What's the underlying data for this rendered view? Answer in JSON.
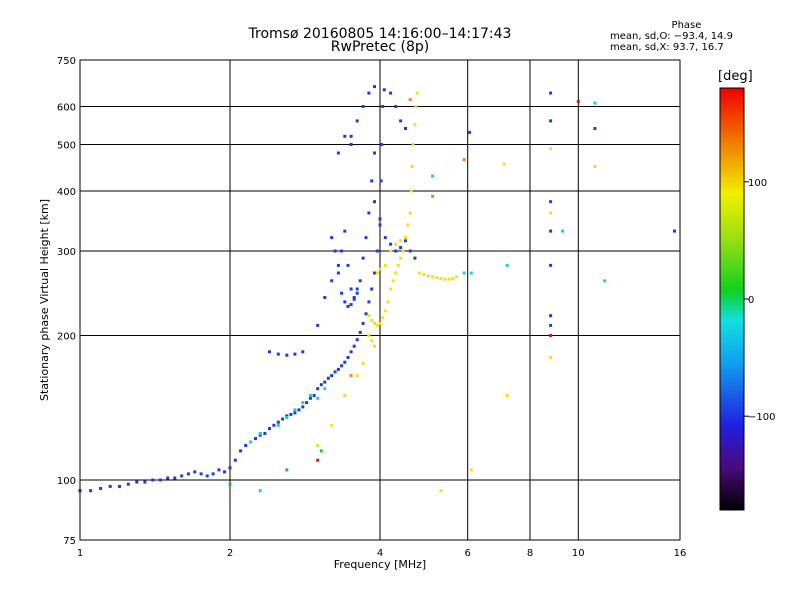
{
  "chart_data": {
    "type": "scatter",
    "title": "Tromsø 20160805 14:16:00–14:17:43",
    "subtitle": "RwPretec (8p)",
    "xlabel": "Frequency [MHz]",
    "ylabel": "Stationary phase Virtual Height [km]",
    "x_scale": "log",
    "y_scale": "log",
    "xlim": [
      1,
      16
    ],
    "ylim": [
      75,
      750
    ],
    "x_ticks": [
      1,
      2,
      4,
      6,
      8,
      10,
      16
    ],
    "x_tick_labels": [
      "1",
      "2",
      "4",
      "6",
      "8",
      "10",
      "16"
    ],
    "y_ticks": [
      75,
      100,
      200,
      300,
      400,
      500,
      600,
      750
    ],
    "y_tick_labels": [
      "75",
      "100",
      "200",
      "300",
      "400",
      "500",
      "600",
      "750"
    ],
    "grid": true,
    "phase_stats": {
      "title": "Phase",
      "o_line": "mean, sd,O: −93.4, 14.9",
      "x_line": "mean, sd,X:  93.7, 16.7"
    },
    "colorbar": {
      "label": "[deg]",
      "ticks": [
        100,
        0,
        -100
      ],
      "tick_labels": [
        "100",
        "0",
        "−100"
      ],
      "range": [
        -180,
        180
      ]
    },
    "series": [
      {
        "phase": -93.4,
        "color": "#1f3bd8",
        "points": [
          [
            1.0,
            95
          ],
          [
            1.05,
            95
          ],
          [
            1.1,
            96
          ],
          [
            1.15,
            97
          ],
          [
            1.2,
            97
          ],
          [
            1.25,
            98
          ],
          [
            1.3,
            99
          ],
          [
            1.35,
            99
          ],
          [
            1.4,
            100
          ],
          [
            1.45,
            100
          ],
          [
            1.5,
            101
          ],
          [
            1.55,
            101
          ],
          [
            1.6,
            102
          ],
          [
            1.65,
            103
          ],
          [
            1.7,
            104
          ],
          [
            1.75,
            103
          ],
          [
            1.8,
            102
          ],
          [
            1.85,
            103
          ],
          [
            1.9,
            105
          ],
          [
            1.95,
            104
          ],
          [
            2.0,
            106
          ],
          [
            2.05,
            110
          ],
          [
            2.1,
            115
          ],
          [
            2.15,
            118
          ],
          [
            2.2,
            120
          ],
          [
            2.25,
            122
          ],
          [
            2.3,
            124
          ],
          [
            2.35,
            125
          ],
          [
            2.4,
            128
          ],
          [
            2.45,
            130
          ],
          [
            2.5,
            132
          ],
          [
            2.55,
            134
          ],
          [
            2.6,
            136
          ],
          [
            2.65,
            137
          ],
          [
            2.7,
            138
          ],
          [
            2.75,
            140
          ],
          [
            2.8,
            142
          ],
          [
            2.85,
            145
          ],
          [
            2.9,
            148
          ],
          [
            2.95,
            150
          ],
          [
            3.0,
            155
          ],
          [
            3.05,
            158
          ],
          [
            3.1,
            160
          ],
          [
            3.15,
            163
          ],
          [
            3.2,
            165
          ],
          [
            3.25,
            168
          ],
          [
            3.3,
            170
          ],
          [
            3.35,
            173
          ],
          [
            3.4,
            176
          ],
          [
            3.45,
            180
          ],
          [
            3.5,
            185
          ],
          [
            3.55,
            190
          ],
          [
            3.6,
            196
          ],
          [
            3.65,
            203
          ],
          [
            3.7,
            212
          ],
          [
            3.75,
            222
          ],
          [
            3.8,
            235
          ],
          [
            3.85,
            250
          ],
          [
            3.9,
            270
          ],
          [
            3.95,
            300
          ],
          [
            4.0,
            350
          ],
          [
            4.02,
            420
          ],
          [
            4.03,
            500
          ],
          [
            4.05,
            600
          ],
          [
            4.08,
            650
          ],
          [
            2.4,
            185
          ],
          [
            2.5,
            183
          ],
          [
            2.6,
            182
          ],
          [
            2.7,
            183
          ],
          [
            2.8,
            185
          ],
          [
            3.0,
            210
          ],
          [
            3.1,
            240
          ],
          [
            3.2,
            260
          ],
          [
            3.3,
            280
          ],
          [
            3.35,
            300
          ],
          [
            3.4,
            330
          ],
          [
            3.45,
            280
          ],
          [
            3.5,
            250
          ],
          [
            3.55,
            240
          ],
          [
            3.6,
            245
          ],
          [
            3.65,
            260
          ],
          [
            3.7,
            290
          ],
          [
            3.75,
            320
          ],
          [
            3.8,
            360
          ],
          [
            3.85,
            420
          ],
          [
            3.9,
            480
          ],
          [
            3.5,
            520
          ],
          [
            3.6,
            560
          ],
          [
            3.7,
            600
          ],
          [
            3.8,
            640
          ],
          [
            3.9,
            660
          ],
          [
            4.2,
            640
          ],
          [
            4.3,
            600
          ],
          [
            4.4,
            560
          ],
          [
            4.5,
            540
          ],
          [
            3.3,
            480
          ],
          [
            3.4,
            520
          ],
          [
            3.5,
            500
          ],
          [
            3.2,
            320
          ],
          [
            3.25,
            300
          ],
          [
            3.3,
            270
          ],
          [
            3.35,
            245
          ],
          [
            3.4,
            235
          ],
          [
            3.45,
            230
          ],
          [
            3.5,
            232
          ],
          [
            3.55,
            238
          ],
          [
            3.6,
            250
          ],
          [
            3.9,
            380
          ],
          [
            4.0,
            340
          ],
          [
            4.1,
            320
          ],
          [
            4.2,
            310
          ],
          [
            4.3,
            300
          ],
          [
            4.4,
            305
          ],
          [
            4.5,
            315
          ],
          [
            4.6,
            300
          ],
          [
            4.7,
            290
          ],
          [
            6.05,
            530
          ],
          [
            8.8,
            640
          ],
          [
            8.8,
            560
          ],
          [
            8.8,
            380
          ],
          [
            8.8,
            330
          ],
          [
            8.8,
            280
          ],
          [
            8.8,
            220
          ],
          [
            8.8,
            210
          ],
          [
            10.8,
            540
          ],
          [
            15.6,
            330
          ]
        ]
      },
      {
        "phase": 93.7,
        "color": "#f0e020",
        "points": [
          [
            3.8,
            220
          ],
          [
            3.85,
            215
          ],
          [
            3.9,
            212
          ],
          [
            3.95,
            210
          ],
          [
            4.0,
            212
          ],
          [
            4.05,
            218
          ],
          [
            4.1,
            225
          ],
          [
            4.15,
            235
          ],
          [
            4.2,
            250
          ],
          [
            4.25,
            260
          ],
          [
            4.3,
            270
          ],
          [
            4.35,
            280
          ],
          [
            4.4,
            290
          ],
          [
            4.45,
            300
          ],
          [
            4.5,
            320
          ],
          [
            4.55,
            340
          ],
          [
            4.6,
            360
          ],
          [
            4.62,
            400
          ],
          [
            4.64,
            450
          ],
          [
            4.66,
            500
          ],
          [
            4.7,
            550
          ],
          [
            4.72,
            600
          ],
          [
            4.75,
            640
          ],
          [
            4.2,
            300
          ],
          [
            4.3,
            310
          ],
          [
            4.4,
            315
          ],
          [
            4.5,
            320
          ],
          [
            4.1,
            280
          ],
          [
            4.0,
            275
          ],
          [
            3.95,
            270
          ],
          [
            4.8,
            270
          ],
          [
            4.9,
            268
          ],
          [
            5.0,
            266
          ],
          [
            5.1,
            265
          ],
          [
            5.2,
            264
          ],
          [
            5.3,
            263
          ],
          [
            5.4,
            262
          ],
          [
            5.5,
            262
          ],
          [
            5.6,
            263
          ],
          [
            5.7,
            265
          ],
          [
            3.9,
            190
          ],
          [
            3.85,
            195
          ],
          [
            3.8,
            200
          ],
          [
            3.7,
            175
          ],
          [
            3.6,
            165
          ],
          [
            3.4,
            150
          ],
          [
            3.2,
            130
          ],
          [
            3.0,
            118
          ],
          [
            7.1,
            455
          ],
          [
            7.2,
            150
          ],
          [
            8.8,
            490
          ],
          [
            8.8,
            360
          ],
          [
            8.8,
            180
          ],
          [
            10.8,
            450
          ],
          [
            6.1,
            105
          ],
          [
            5.3,
            95
          ]
        ]
      },
      {
        "phase": 0,
        "color": "#20c8e8",
        "points": [
          [
            2.2,
            120
          ],
          [
            2.3,
            125
          ],
          [
            2.5,
            130
          ],
          [
            2.6,
            135
          ],
          [
            2.7,
            140
          ],
          [
            2.8,
            145
          ],
          [
            2.9,
            150
          ],
          [
            3.0,
            148
          ],
          [
            3.1,
            155
          ],
          [
            5.1,
            430
          ],
          [
            5.9,
            270
          ],
          [
            6.1,
            270
          ],
          [
            7.2,
            280
          ],
          [
            9.3,
            330
          ],
          [
            11.3,
            260
          ],
          [
            10.8,
            610
          ],
          [
            2.3,
            95
          ]
        ]
      },
      {
        "phase": 160,
        "color": "#e81010",
        "points": [
          [
            10.0,
            615
          ],
          [
            3.0,
            110
          ],
          [
            8.8,
            200
          ]
        ]
      },
      {
        "phase": 140,
        "color": "#f08020",
        "points": [
          [
            5.1,
            390
          ],
          [
            5.9,
            465
          ],
          [
            3.5,
            165
          ],
          [
            4.6,
            620
          ]
        ]
      },
      {
        "phase": 60,
        "color": "#20c040",
        "points": [
          [
            2.6,
            105
          ],
          [
            3.05,
            115
          ],
          [
            2.0,
            98
          ]
        ]
      }
    ]
  }
}
